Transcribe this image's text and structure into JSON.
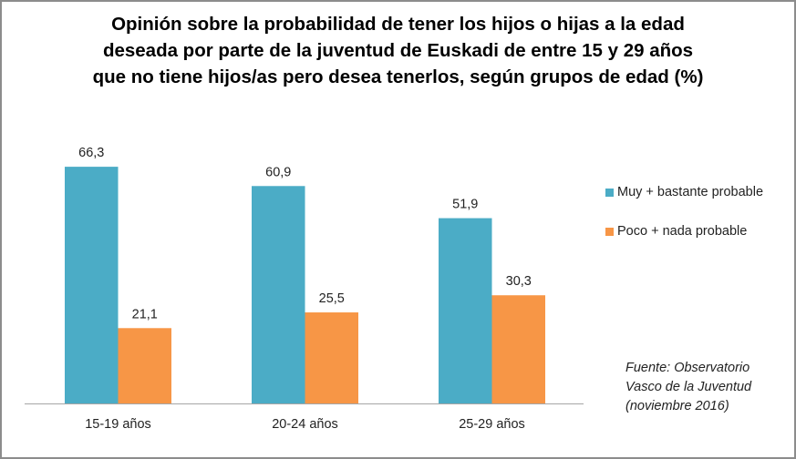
{
  "chart_data": {
    "type": "bar",
    "title_lines": [
      "Opinión sobre la probabilidad de tener los hijos o hijas a la edad",
      "deseada por parte de la juventud de Euskadi de entre 15 y 29 años",
      "que no tiene hijos/as pero desea tenerlos, según grupos de edad (%)"
    ],
    "categories": [
      "15-19 años",
      "20-24 años",
      "25-29 años"
    ],
    "series": [
      {
        "name": "Muy + bastante probable",
        "color": "#4bacc6",
        "values": [
          66.3,
          60.9,
          51.9
        ],
        "labels": [
          "66,3",
          "60,9",
          "51,9"
        ]
      },
      {
        "name": "Poco + nada probable",
        "color": "#f79646",
        "values": [
          21.1,
          25.5,
          30.3
        ],
        "labels": [
          "21,1",
          "25,5",
          "30,3"
        ]
      }
    ],
    "ylim": [
      0,
      75
    ],
    "grid": false,
    "legend": "right",
    "source_lines": [
      "Fuente: Observatorio",
      "Vasco de la Juventud",
      "(noviembre 2016)"
    ]
  }
}
